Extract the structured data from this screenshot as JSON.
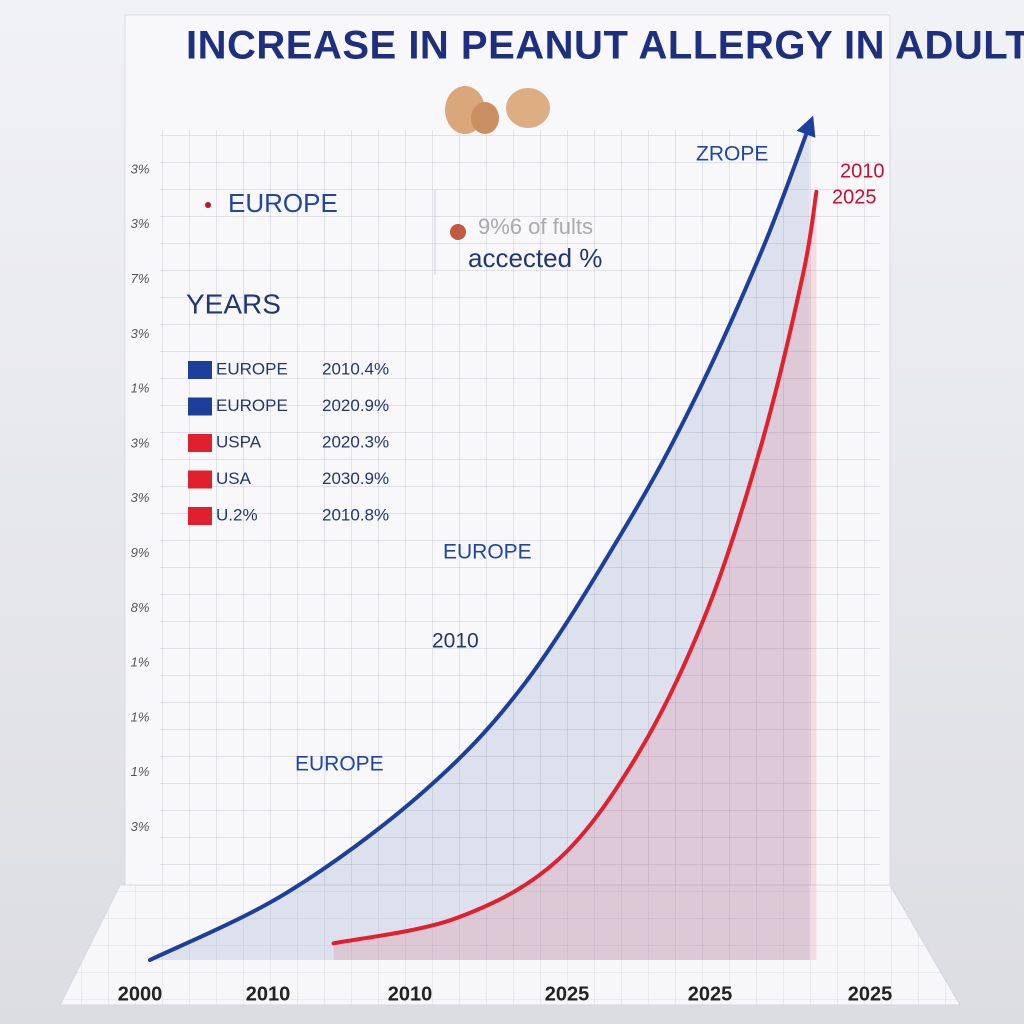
{
  "chart_data": {
    "type": "line",
    "title": "INCREASE IN PEANUT ALLERGY IN ADULTS",
    "xlim": [
      0,
      100
    ],
    "ylim": [
      0,
      100
    ],
    "series": [
      {
        "name": "EUROPE",
        "color": "#1d3f9a",
        "x": [
          0,
          20,
          40,
          55,
          70,
          80,
          90,
          97
        ],
        "values": [
          0,
          8,
          20,
          33,
          52,
          67,
          85,
          100
        ]
      },
      {
        "name": "USA",
        "color": "#e0202e",
        "x": [
          27,
          45,
          60,
          72,
          82,
          90,
          96,
          98
        ],
        "values": [
          2,
          5,
          12,
          25,
          42,
          62,
          82,
          92
        ]
      }
    ],
    "x_axis_labels": [
      "2000",
      "2010",
      "2010",
      "2025",
      "2025",
      "2025"
    ],
    "y_axis_labels": [
      "3%",
      "3%",
      "7%",
      "3%",
      "1%",
      "3%",
      "3%",
      "9%",
      "8%",
      "1%",
      "1%",
      "1%",
      "3%"
    ],
    "legend_title": "YEARS",
    "legend_heading": "EUROPE",
    "legend_rows": [
      {
        "label": "EUROPE",
        "value": "2010.4%",
        "color": "#1d3f9a"
      },
      {
        "label": "EUROPE",
        "value": "2020.9%",
        "color": "#1d3f9a"
      },
      {
        "label": "USPA",
        "value": "2020.3%",
        "color": "#e0202e"
      },
      {
        "label": "USA",
        "value": "2030.9%",
        "color": "#e0202e"
      },
      {
        "label": "U.2%",
        "value": "2010.8%",
        "color": "#e0202e"
      }
    ],
    "annotations": {
      "top_right": "ZROPE",
      "red_start": "2010",
      "red_end": "2025",
      "box_line1": "9%6 of fults",
      "box_line2": "accected %",
      "middle": "EUROPE",
      "year_mid": "2010",
      "lower": "EUROPE"
    }
  }
}
